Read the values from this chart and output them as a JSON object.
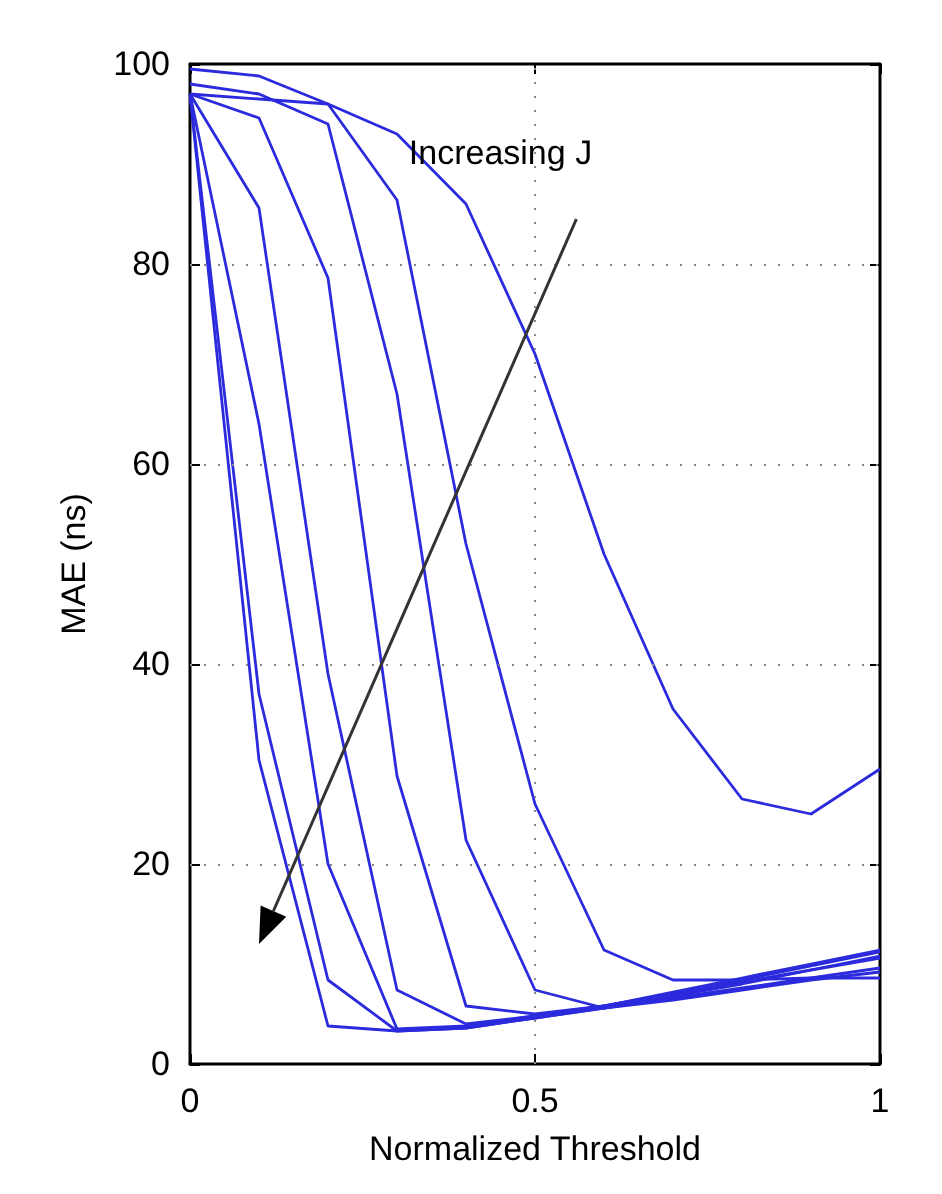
{
  "chart_data": {
    "type": "line",
    "xlabel": "Normalized Threshold",
    "ylabel": "MAE (ns)",
    "x": [
      0,
      0.1,
      0.2,
      0.3,
      0.4,
      0.5,
      0.6,
      0.7,
      0.8,
      0.9,
      1
    ],
    "series": [
      {
        "color": "#2b2bdd",
        "values": [
          97,
          30.4,
          3.8,
          3.3,
          3.6,
          4.6,
          5.6,
          6.6,
          7.6,
          8.6,
          9.6
        ]
      },
      {
        "color": "#2b2bdd",
        "values": [
          97,
          37,
          8.4,
          3.3,
          3.6,
          4.6,
          5.6,
          6.8,
          8,
          9.4,
          10.8
        ]
      },
      {
        "color": "#2b2bdd",
        "values": [
          97,
          64,
          20,
          3.5,
          3.8,
          4.8,
          5.8,
          7,
          8.4,
          9.8,
          11.2
        ]
      },
      {
        "color": "#2b2bdd",
        "values": [
          97,
          85.6,
          39,
          7.4,
          4,
          4.8,
          5.8,
          7.2,
          8.6,
          10,
          11.4
        ]
      },
      {
        "color": "#2b2bdd",
        "values": [
          97,
          94.6,
          78.6,
          28.8,
          5.8,
          5,
          5.8,
          7,
          8.2,
          9.4,
          10.6
        ]
      },
      {
        "color": "#2b2bdd",
        "values": [
          98,
          97,
          94,
          67,
          22.4,
          7.4,
          5.6,
          6.4,
          7.4,
          8.4,
          9.2
        ]
      },
      {
        "color": "#2b2bdd",
        "values": [
          99.5,
          98.8,
          96,
          86.4,
          52,
          26,
          11.4,
          8.4,
          8.4,
          8.6,
          8.6
        ]
      },
      {
        "color": "#2b2bdd",
        "values": [
          97,
          96.5,
          96,
          93,
          86,
          71,
          51,
          35.5,
          26.5,
          25,
          29.5
        ]
      }
    ],
    "xlim": [
      0,
      1
    ],
    "xticks": [
      0,
      0.5,
      1
    ],
    "ylim": [
      0,
      100
    ],
    "yticks": [
      0,
      20,
      40,
      60,
      80,
      100
    ],
    "grid": true,
    "marker": "none",
    "line_style": "solid",
    "annotations": [
      "Increasing J"
    ]
  }
}
